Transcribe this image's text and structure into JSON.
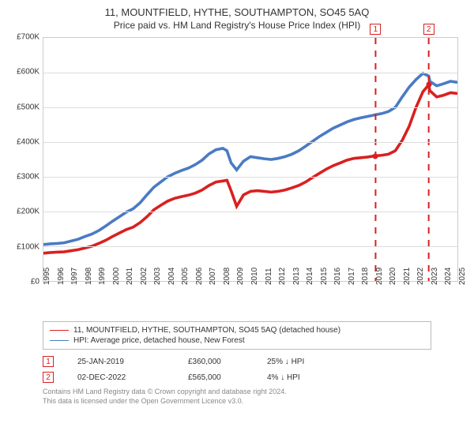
{
  "header": {
    "title": "11, MOUNTFIELD, HYTHE, SOUTHAMPTON, SO45 5AQ",
    "subtitle": "Price paid vs. HM Land Registry's House Price Index (HPI)"
  },
  "chart": {
    "type": "line",
    "background_color": "#ffffff",
    "grid_color": "#dddddd",
    "border_color": "#cccccc",
    "y_axis": {
      "min": 0,
      "max": 700000,
      "step": 100000,
      "labels": [
        "£0",
        "£100K",
        "£200K",
        "£300K",
        "£400K",
        "£500K",
        "£600K",
        "£700K"
      ],
      "label_fontsize": 10
    },
    "x_axis": {
      "min": 1995,
      "max": 2025,
      "step": 1,
      "labels": [
        "1995",
        "1996",
        "1997",
        "1998",
        "1999",
        "2000",
        "2001",
        "2002",
        "2003",
        "2004",
        "2005",
        "2006",
        "2007",
        "2008",
        "2009",
        "2010",
        "2011",
        "2012",
        "2013",
        "2014",
        "2015",
        "2016",
        "2017",
        "2018",
        "2019",
        "2020",
        "2021",
        "2022",
        "2023",
        "2024",
        "2025"
      ],
      "label_fontsize": 10
    },
    "series": [
      {
        "name": "property",
        "label": "11, MOUNTFIELD, HYTHE, SOUTHAMPTON, SO45 5AQ (detached house)",
        "color": "#d92020",
        "line_width": 1.2,
        "data": [
          [
            1995,
            80000
          ],
          [
            1995.5,
            82000
          ],
          [
            1996,
            83000
          ],
          [
            1996.5,
            84000
          ],
          [
            1997,
            87000
          ],
          [
            1997.5,
            90000
          ],
          [
            1998,
            95000
          ],
          [
            1998.5,
            100000
          ],
          [
            1999,
            108000
          ],
          [
            1999.5,
            117000
          ],
          [
            2000,
            128000
          ],
          [
            2000.5,
            138000
          ],
          [
            2001,
            148000
          ],
          [
            2001.5,
            155000
          ],
          [
            2002,
            168000
          ],
          [
            2002.5,
            185000
          ],
          [
            2003,
            205000
          ],
          [
            2003.5,
            218000
          ],
          [
            2004,
            230000
          ],
          [
            2004.5,
            238000
          ],
          [
            2005,
            243000
          ],
          [
            2005.5,
            247000
          ],
          [
            2006,
            253000
          ],
          [
            2006.5,
            262000
          ],
          [
            2007,
            275000
          ],
          [
            2007.5,
            285000
          ],
          [
            2008,
            288000
          ],
          [
            2008.3,
            290000
          ],
          [
            2008.6,
            260000
          ],
          [
            2009,
            215000
          ],
          [
            2009.5,
            248000
          ],
          [
            2010,
            258000
          ],
          [
            2010.5,
            260000
          ],
          [
            2011,
            258000
          ],
          [
            2011.5,
            256000
          ],
          [
            2012,
            258000
          ],
          [
            2012.5,
            262000
          ],
          [
            2013,
            268000
          ],
          [
            2013.5,
            275000
          ],
          [
            2014,
            285000
          ],
          [
            2014.5,
            298000
          ],
          [
            2015,
            310000
          ],
          [
            2015.5,
            322000
          ],
          [
            2016,
            332000
          ],
          [
            2016.5,
            340000
          ],
          [
            2017,
            348000
          ],
          [
            2017.5,
            353000
          ],
          [
            2018,
            355000
          ],
          [
            2018.5,
            357000
          ],
          [
            2019,
            360000
          ],
          [
            2019.5,
            362000
          ],
          [
            2020,
            365000
          ],
          [
            2020.5,
            375000
          ],
          [
            2021,
            405000
          ],
          [
            2021.5,
            445000
          ],
          [
            2022,
            500000
          ],
          [
            2022.5,
            545000
          ],
          [
            2022.92,
            565000
          ],
          [
            2023,
            548000
          ],
          [
            2023.5,
            530000
          ],
          [
            2024,
            535000
          ],
          [
            2024.5,
            542000
          ],
          [
            2025,
            540000
          ]
        ]
      },
      {
        "name": "hpi",
        "label": "HPI: Average price, detached house, New Forest",
        "color": "#4a7bc4",
        "line_width": 1.2,
        "data": [
          [
            1995,
            105000
          ],
          [
            1995.5,
            107000
          ],
          [
            1996,
            108000
          ],
          [
            1996.5,
            110000
          ],
          [
            1997,
            115000
          ],
          [
            1997.5,
            120000
          ],
          [
            1998,
            128000
          ],
          [
            1998.5,
            135000
          ],
          [
            1999,
            145000
          ],
          [
            1999.5,
            158000
          ],
          [
            2000,
            172000
          ],
          [
            2000.5,
            185000
          ],
          [
            2001,
            198000
          ],
          [
            2001.5,
            208000
          ],
          [
            2002,
            225000
          ],
          [
            2002.5,
            248000
          ],
          [
            2003,
            270000
          ],
          [
            2003.5,
            285000
          ],
          [
            2004,
            300000
          ],
          [
            2004.5,
            310000
          ],
          [
            2005,
            318000
          ],
          [
            2005.5,
            325000
          ],
          [
            2006,
            335000
          ],
          [
            2006.5,
            348000
          ],
          [
            2007,
            366000
          ],
          [
            2007.5,
            378000
          ],
          [
            2008,
            382000
          ],
          [
            2008.3,
            375000
          ],
          [
            2008.6,
            340000
          ],
          [
            2009,
            320000
          ],
          [
            2009.5,
            345000
          ],
          [
            2010,
            358000
          ],
          [
            2010.5,
            355000
          ],
          [
            2011,
            352000
          ],
          [
            2011.5,
            350000
          ],
          [
            2012,
            353000
          ],
          [
            2012.5,
            358000
          ],
          [
            2013,
            365000
          ],
          [
            2013.5,
            375000
          ],
          [
            2014,
            388000
          ],
          [
            2014.5,
            402000
          ],
          [
            2015,
            416000
          ],
          [
            2015.5,
            428000
          ],
          [
            2016,
            440000
          ],
          [
            2016.5,
            449000
          ],
          [
            2017,
            458000
          ],
          [
            2017.5,
            465000
          ],
          [
            2018,
            470000
          ],
          [
            2018.5,
            474000
          ],
          [
            2019,
            478000
          ],
          [
            2019.5,
            482000
          ],
          [
            2020,
            488000
          ],
          [
            2020.5,
            500000
          ],
          [
            2021,
            530000
          ],
          [
            2021.5,
            558000
          ],
          [
            2022,
            580000
          ],
          [
            2022.5,
            598000
          ],
          [
            2022.92,
            590000
          ],
          [
            2023,
            575000
          ],
          [
            2023.5,
            562000
          ],
          [
            2024,
            568000
          ],
          [
            2024.5,
            575000
          ],
          [
            2025,
            572000
          ]
        ]
      }
    ],
    "sale_markers": [
      {
        "num": "1",
        "x": 2019.07,
        "color": "#d92020"
      },
      {
        "num": "2",
        "x": 2022.92,
        "color": "#d92020"
      }
    ],
    "sale_points": [
      {
        "x": 2019.07,
        "y": 360000,
        "color": "#d92020"
      },
      {
        "x": 2022.92,
        "y": 565000,
        "color": "#d92020"
      }
    ]
  },
  "legend": {
    "items": [
      {
        "color": "#d92020",
        "label": "11, MOUNTFIELD, HYTHE, SOUTHAMPTON, SO45 5AQ (detached house)"
      },
      {
        "color": "#4a7bc4",
        "label": "HPI: Average price, detached house, New Forest"
      }
    ]
  },
  "sales": [
    {
      "num": "1",
      "date": "25-JAN-2019",
      "price": "£360,000",
      "delta": "25% ↓ HPI",
      "color": "#d92020"
    },
    {
      "num": "2",
      "date": "02-DEC-2022",
      "price": "£565,000",
      "delta": "4% ↓ HPI",
      "color": "#d92020"
    }
  ],
  "credits": {
    "line1": "Contains HM Land Registry data © Crown copyright and database right 2024.",
    "line2": "This data is licensed under the Open Government Licence v3.0."
  }
}
